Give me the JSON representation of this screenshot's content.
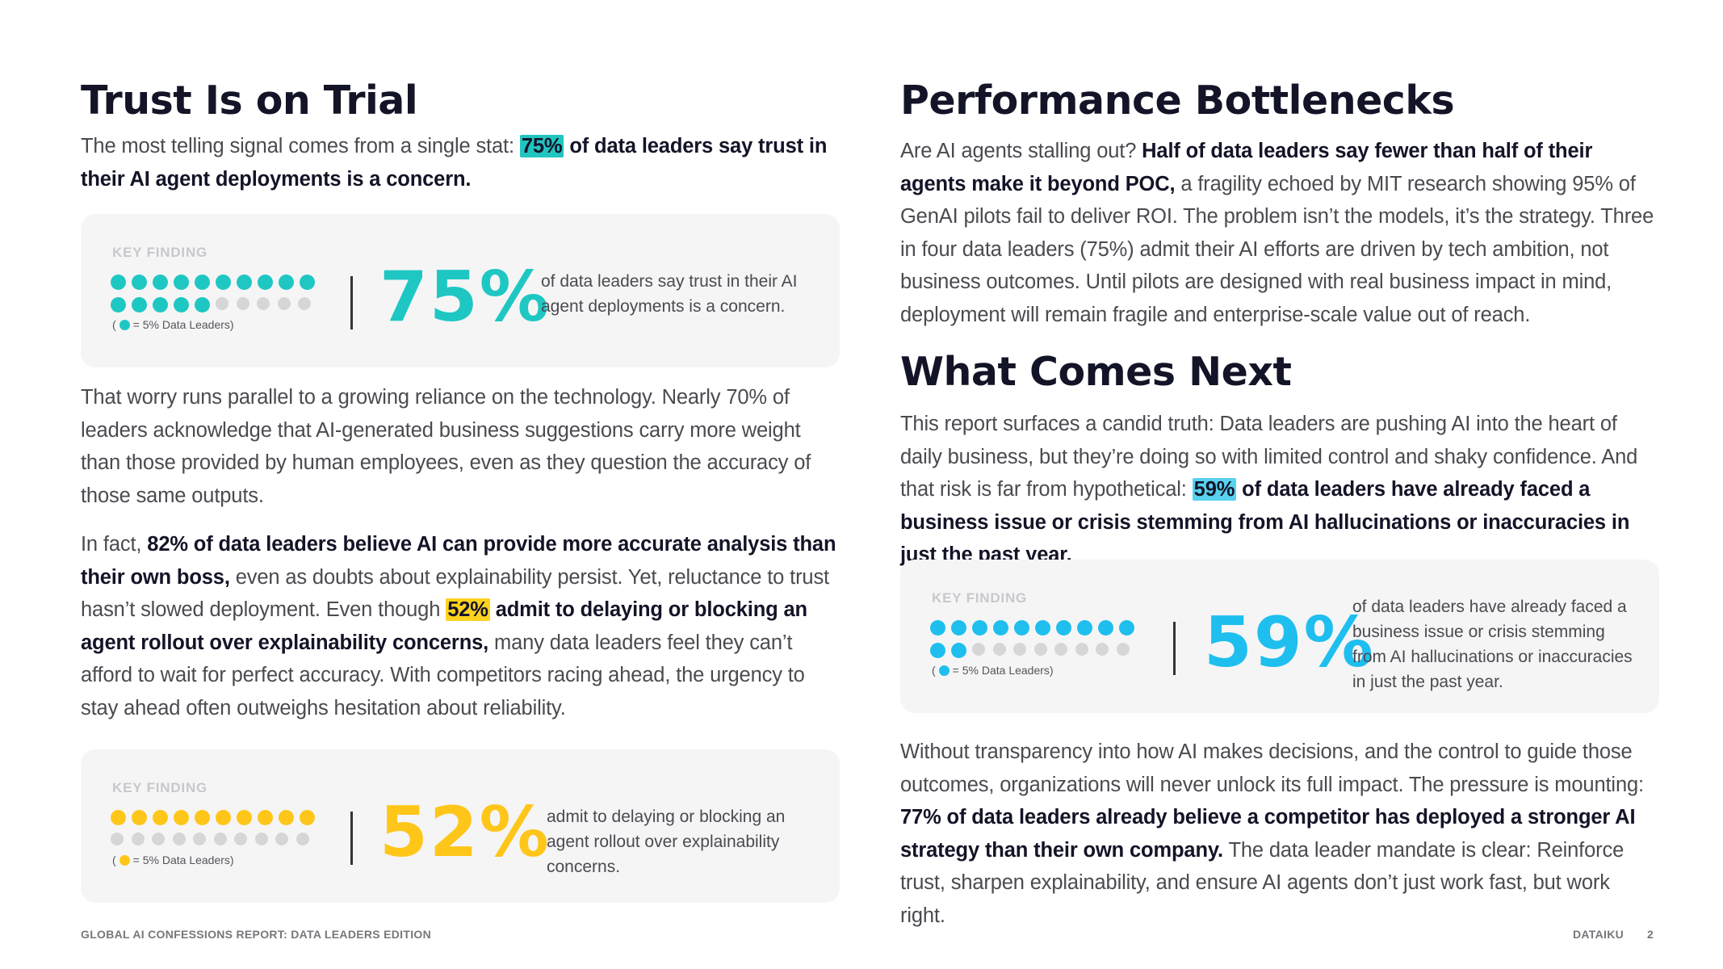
{
  "left": {
    "title": "Trust Is on Trial",
    "intro": {
      "prefix": "The most telling signal comes from a single stat: ",
      "highlight": "75%",
      "bold": " of data leaders say trust in their AI agent deployments is a concern."
    },
    "card1": {
      "label": "KEY FINDING",
      "value": 75,
      "big_text": "75%",
      "legend": "= 5% Data Leaders)",
      "legend_open": "(",
      "text": "of data leaders say trust in their AI agent deployments is a concern.",
      "color": "#1fc7c3"
    },
    "para1": "That worry runs parallel to a growing reliance on the technology. Nearly 70% of leaders acknowledge that AI-generated business suggestions carry more weight than those provided by human employees, even as they question the accuracy of those same outputs.",
    "para2": {
      "a": "In fact, ",
      "b_bold": "82% of data leaders believe AI can provide more accurate analysis than their own boss,",
      "c": " even as doubts about explainability persist. Yet, reluctance to trust hasn’t slowed deployment. Even though ",
      "d_highlight": "52%",
      "e_bold": " admit to delaying or blocking an agent rollout over explainability concerns,",
      "f": " many data leaders feel they can’t afford to wait for perfect accuracy. With competitors racing ahead, the urgency to stay ahead often outweighs hesitation about reliability."
    },
    "card2": {
      "label": "KEY FINDING",
      "value": 52,
      "big_text": "52%",
      "legend": "= 5% Data Leaders)",
      "legend_open": "(",
      "text": "admit to delaying or blocking an agent rollout over explainability concerns.",
      "color": "#ffc61a"
    }
  },
  "right": {
    "title1": "Performance Bottlenecks",
    "para1": {
      "a": "Are AI agents stalling out? ",
      "b_bold": "Half of data leaders say fewer than half of their agents make it beyond POC,",
      "c": " a fragility echoed by MIT research showing 95% of GenAI pilots fail to deliver ROI. The problem isn’t the models, it’s the strategy. Three in four data leaders (75%) admit their AI efforts are driven by tech ambition, not business outcomes. Until pilots are designed with real business impact in mind, deployment will remain fragile and enterprise-scale value out of reach."
    },
    "title2": "What Comes Next",
    "para2": {
      "a": "This report surfaces a candid truth: Data leaders are pushing AI into the heart of daily business, but they’re doing so with limited control and shaky confidence. And that risk is far from hypothetical: ",
      "b_highlight": "59%",
      "c_bold": " of data leaders have already faced a business issue or crisis stemming from AI hallucinations or inaccuracies in just the past year."
    },
    "card3": {
      "label": "KEY FINDING",
      "value": 59,
      "big_text": "59%",
      "legend": "= 5% Data Leaders)",
      "legend_open": "(",
      "text": "of data leaders have already faced a business issue or crisis stemming from AI hallucinations or inaccuracies in just the past year.",
      "color": "#1ebfee"
    },
    "para3": {
      "a": "Without transparency into how AI makes decisions, and the control to guide those outcomes, organizations will never unlock its full impact. The pressure is mounting: ",
      "b_bold": "77% of data leaders already believe a competitor has deployed a stronger AI strategy than their own company.",
      "c": " The data leader mandate is clear: Reinforce trust, sharpen explainability, and ensure AI agents don’t just work fast, but work right."
    }
  },
  "footer": {
    "left": "GLOBAL AI CONFESSIONS REPORT: DATA LEADERS EDITION",
    "brand": "DATAIKU",
    "page": "2"
  }
}
